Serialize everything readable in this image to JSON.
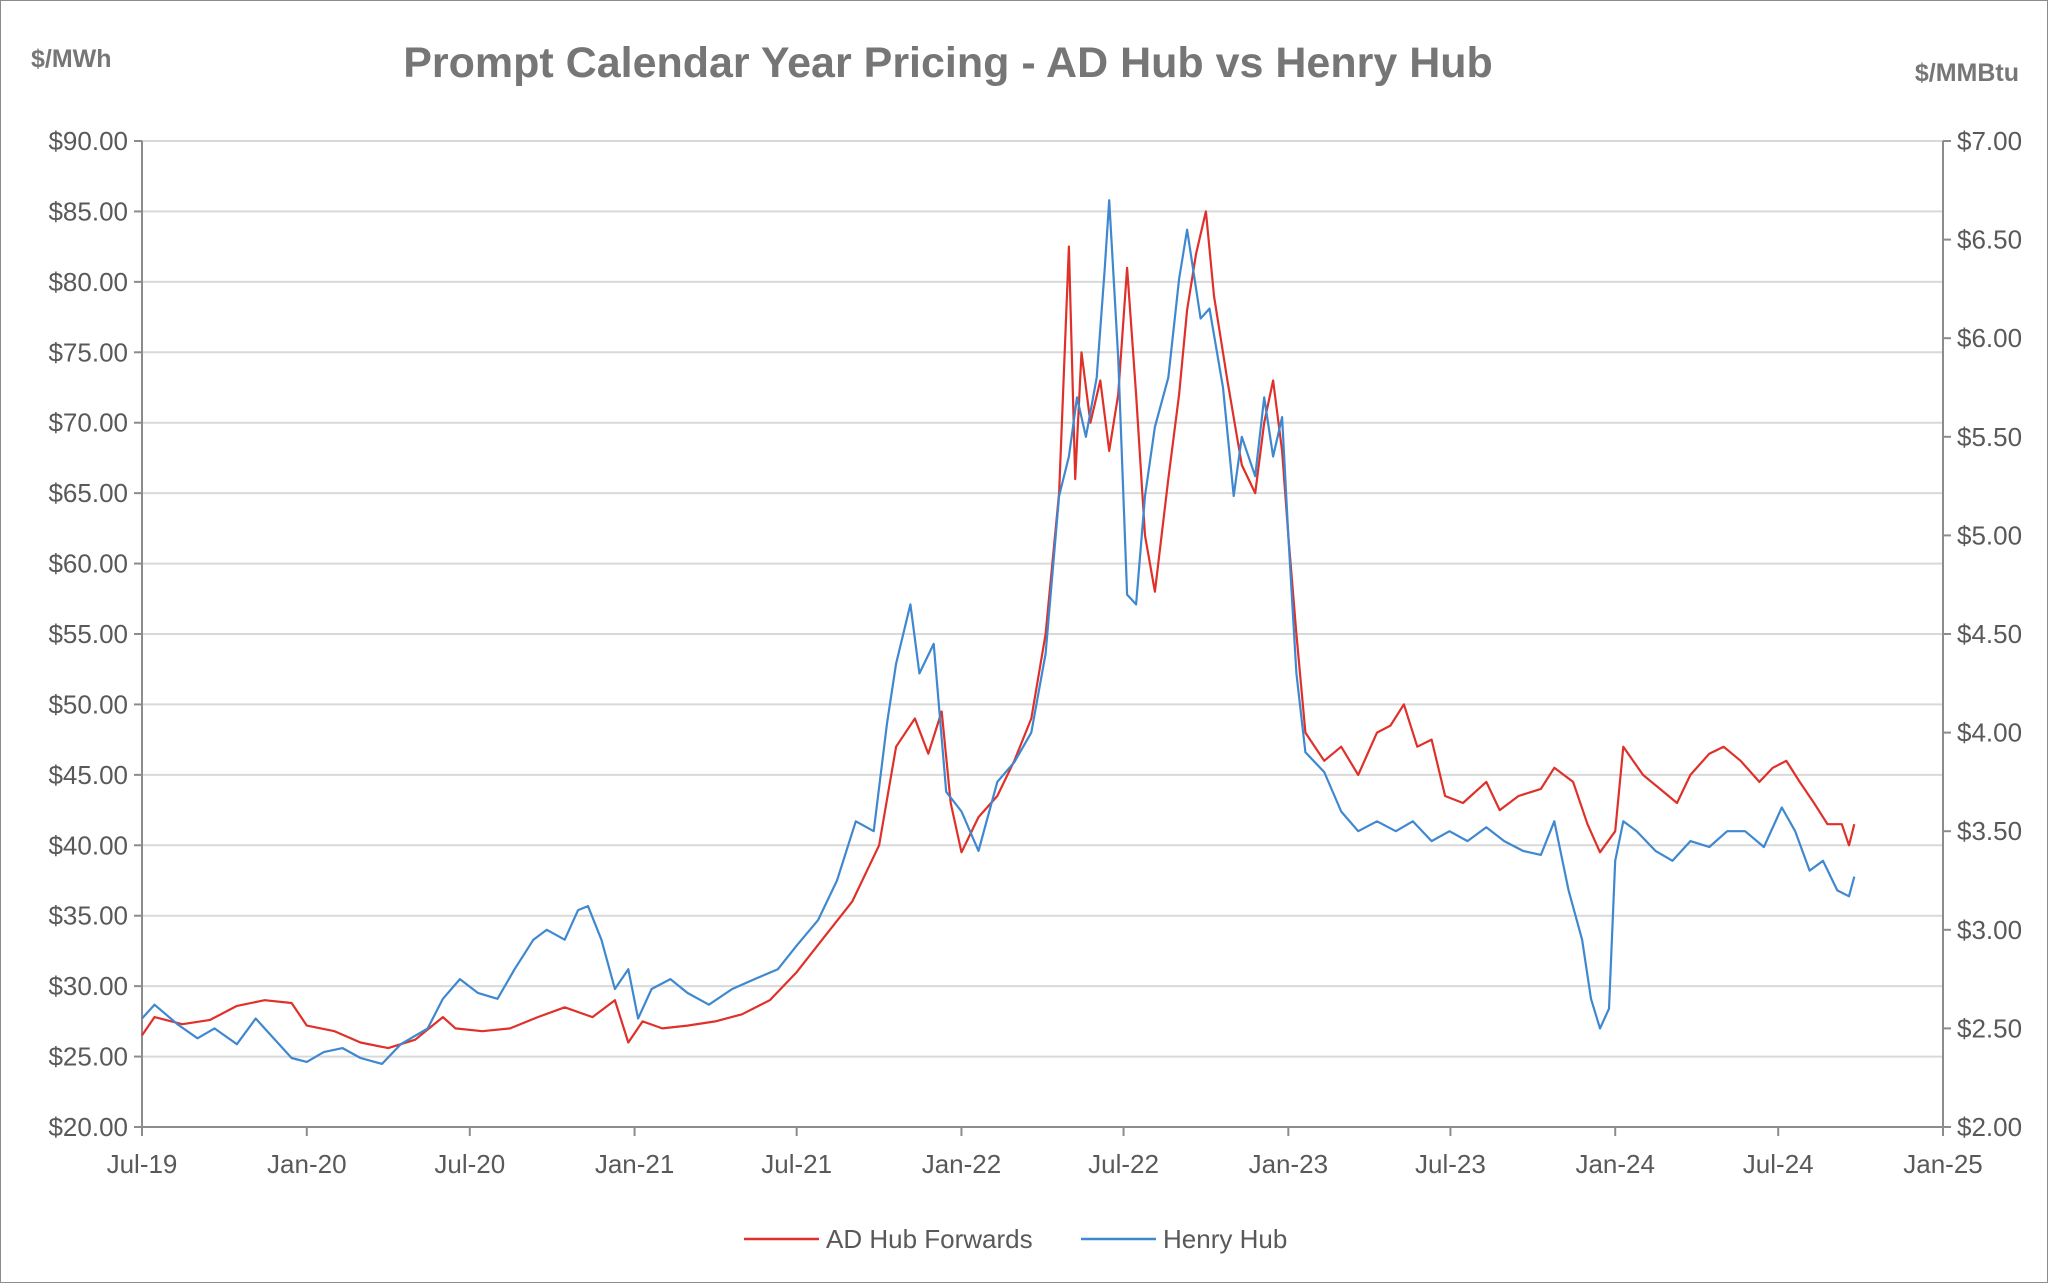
{
  "chart_data": {
    "type": "line",
    "title": "Prompt Calendar Year Pricing - AD Hub vs Henry Hub",
    "ylabel_left": "$/MWh",
    "ylabel_right": "$/MMBtu",
    "xlabel": "",
    "xlim": [
      "2019-07-01",
      "2025-01-01"
    ],
    "ylim_left": [
      20,
      90
    ],
    "ylim_right": [
      2,
      7
    ],
    "x_ticks": [
      {
        "date": "2019-07-01",
        "label": "Jul-19"
      },
      {
        "date": "2020-01-01",
        "label": "Jan-20"
      },
      {
        "date": "2020-07-01",
        "label": "Jul-20"
      },
      {
        "date": "2021-01-01",
        "label": "Jan-21"
      },
      {
        "date": "2021-07-01",
        "label": "Jul-21"
      },
      {
        "date": "2022-01-01",
        "label": "Jan-22"
      },
      {
        "date": "2022-07-01",
        "label": "Jul-22"
      },
      {
        "date": "2023-01-01",
        "label": "Jan-23"
      },
      {
        "date": "2023-07-01",
        "label": "Jul-23"
      },
      {
        "date": "2024-01-01",
        "label": "Jan-24"
      },
      {
        "date": "2024-07-01",
        "label": "Jul-24"
      },
      {
        "date": "2025-01-01",
        "label": "Jan-25"
      }
    ],
    "y_ticks_left": [
      {
        "value": 20,
        "label": "$20.00"
      },
      {
        "value": 25,
        "label": "$25.00"
      },
      {
        "value": 30,
        "label": "$30.00"
      },
      {
        "value": 35,
        "label": "$35.00"
      },
      {
        "value": 40,
        "label": "$40.00"
      },
      {
        "value": 45,
        "label": "$45.00"
      },
      {
        "value": 50,
        "label": "$50.00"
      },
      {
        "value": 55,
        "label": "$55.00"
      },
      {
        "value": 60,
        "label": "$60.00"
      },
      {
        "value": 65,
        "label": "$65.00"
      },
      {
        "value": 70,
        "label": "$70.00"
      },
      {
        "value": 75,
        "label": "$75.00"
      },
      {
        "value": 80,
        "label": "$80.00"
      },
      {
        "value": 85,
        "label": "$85.00"
      },
      {
        "value": 90,
        "label": "$90.00"
      }
    ],
    "y_ticks_right": [
      {
        "value": 2,
        "label": "$2.00"
      },
      {
        "value": 2.5,
        "label": "$2.50"
      },
      {
        "value": 3,
        "label": "$3.00"
      },
      {
        "value": 3.5,
        "label": "$3.50"
      },
      {
        "value": 4,
        "label": "$4.00"
      },
      {
        "value": 4.5,
        "label": "$4.50"
      },
      {
        "value": 5,
        "label": "$5.00"
      },
      {
        "value": 5.5,
        "label": "$5.50"
      },
      {
        "value": 6,
        "label": "$6.00"
      },
      {
        "value": 6.5,
        "label": "$6.50"
      },
      {
        "value": 7,
        "label": "$7.00"
      }
    ],
    "grid": true,
    "legend_position": "bottom",
    "series": [
      {
        "name": "AD Hub Forwards",
        "axis": "left",
        "color": "#e0302a",
        "points": [
          [
            "2019-07-01",
            26.5
          ],
          [
            "2019-07-15",
            27.8
          ],
          [
            "2019-08-15",
            27.3
          ],
          [
            "2019-09-15",
            27.6
          ],
          [
            "2019-10-15",
            28.6
          ],
          [
            "2019-11-15",
            29.0
          ],
          [
            "2019-12-15",
            28.8
          ],
          [
            "2020-01-01",
            27.2
          ],
          [
            "2020-02-01",
            26.8
          ],
          [
            "2020-03-01",
            26.0
          ],
          [
            "2020-04-01",
            25.6
          ],
          [
            "2020-05-01",
            26.2
          ],
          [
            "2020-06-01",
            27.8
          ],
          [
            "2020-06-15",
            27.0
          ],
          [
            "2020-07-15",
            26.8
          ],
          [
            "2020-08-15",
            27.0
          ],
          [
            "2020-09-15",
            27.8
          ],
          [
            "2020-10-15",
            28.5
          ],
          [
            "2020-11-15",
            27.8
          ],
          [
            "2020-12-10",
            29.0
          ],
          [
            "2020-12-25",
            26.0
          ],
          [
            "2021-01-10",
            27.5
          ],
          [
            "2021-02-01",
            27.0
          ],
          [
            "2021-03-01",
            27.2
          ],
          [
            "2021-04-01",
            27.5
          ],
          [
            "2021-05-01",
            28.0
          ],
          [
            "2021-06-01",
            29.0
          ],
          [
            "2021-07-01",
            31.0
          ],
          [
            "2021-08-01",
            33.5
          ],
          [
            "2021-09-01",
            36.0
          ],
          [
            "2021-10-01",
            40.0
          ],
          [
            "2021-10-20",
            47.0
          ],
          [
            "2021-11-10",
            49.0
          ],
          [
            "2021-11-25",
            46.5
          ],
          [
            "2021-12-10",
            49.5
          ],
          [
            "2021-12-20",
            43.0
          ],
          [
            "2022-01-01",
            39.5
          ],
          [
            "2022-01-20",
            42.0
          ],
          [
            "2022-02-10",
            43.5
          ],
          [
            "2022-03-01",
            46.0
          ],
          [
            "2022-03-20",
            49.0
          ],
          [
            "2022-04-05",
            55.0
          ],
          [
            "2022-04-20",
            65.0
          ],
          [
            "2022-05-01",
            82.5
          ],
          [
            "2022-05-08",
            66.0
          ],
          [
            "2022-05-15",
            75.0
          ],
          [
            "2022-05-25",
            70.0
          ],
          [
            "2022-06-05",
            73.0
          ],
          [
            "2022-06-15",
            68.0
          ],
          [
            "2022-06-25",
            72.0
          ],
          [
            "2022-07-05",
            81.0
          ],
          [
            "2022-07-15",
            72.0
          ],
          [
            "2022-07-25",
            62.0
          ],
          [
            "2022-08-05",
            58.0
          ],
          [
            "2022-08-20",
            66.0
          ],
          [
            "2022-09-01",
            72.0
          ],
          [
            "2022-09-10",
            78.0
          ],
          [
            "2022-09-20",
            82.0
          ],
          [
            "2022-10-01",
            85.0
          ],
          [
            "2022-10-10",
            79.0
          ],
          [
            "2022-10-25",
            73.0
          ],
          [
            "2022-11-10",
            67.0
          ],
          [
            "2022-11-25",
            65.0
          ],
          [
            "2022-12-05",
            70.0
          ],
          [
            "2022-12-15",
            73.0
          ],
          [
            "2022-12-25",
            68.0
          ],
          [
            "2023-01-01",
            62.0
          ],
          [
            "2023-01-10",
            55.0
          ],
          [
            "2023-01-20",
            48.0
          ],
          [
            "2023-02-10",
            46.0
          ],
          [
            "2023-03-01",
            47.0
          ],
          [
            "2023-03-20",
            45.0
          ],
          [
            "2023-04-10",
            48.0
          ],
          [
            "2023-04-25",
            48.5
          ],
          [
            "2023-05-10",
            50.0
          ],
          [
            "2023-05-25",
            47.0
          ],
          [
            "2023-06-10",
            47.5
          ],
          [
            "2023-06-25",
            43.5
          ],
          [
            "2023-07-15",
            43.0
          ],
          [
            "2023-08-10",
            44.5
          ],
          [
            "2023-08-25",
            42.5
          ],
          [
            "2023-09-15",
            43.5
          ],
          [
            "2023-10-10",
            44.0
          ],
          [
            "2023-10-25",
            45.5
          ],
          [
            "2023-11-15",
            44.5
          ],
          [
            "2023-12-01",
            41.5
          ],
          [
            "2023-12-15",
            39.5
          ],
          [
            "2024-01-01",
            41.0
          ],
          [
            "2024-01-10",
            47.0
          ],
          [
            "2024-02-01",
            45.0
          ],
          [
            "2024-02-20",
            44.0
          ],
          [
            "2024-03-10",
            43.0
          ],
          [
            "2024-03-25",
            45.0
          ],
          [
            "2024-04-15",
            46.5
          ],
          [
            "2024-05-01",
            47.0
          ],
          [
            "2024-05-20",
            46.0
          ],
          [
            "2024-06-10",
            44.5
          ],
          [
            "2024-06-25",
            45.5
          ],
          [
            "2024-07-10",
            46.0
          ],
          [
            "2024-07-25",
            44.5
          ],
          [
            "2024-08-10",
            43.0
          ],
          [
            "2024-08-25",
            41.5
          ],
          [
            "2024-09-10",
            41.5
          ],
          [
            "2024-09-18",
            40.0
          ],
          [
            "2024-09-24",
            41.5
          ]
        ]
      },
      {
        "name": "Henry Hub",
        "axis": "right",
        "color": "#3f88d0",
        "points": [
          [
            "2019-07-01",
            2.55
          ],
          [
            "2019-07-15",
            2.62
          ],
          [
            "2019-08-10",
            2.52
          ],
          [
            "2019-09-01",
            2.45
          ],
          [
            "2019-09-20",
            2.5
          ],
          [
            "2019-10-15",
            2.42
          ],
          [
            "2019-11-05",
            2.55
          ],
          [
            "2019-11-25",
            2.45
          ],
          [
            "2019-12-15",
            2.35
          ],
          [
            "2020-01-01",
            2.33
          ],
          [
            "2020-01-20",
            2.38
          ],
          [
            "2020-02-10",
            2.4
          ],
          [
            "2020-03-01",
            2.35
          ],
          [
            "2020-03-25",
            2.32
          ],
          [
            "2020-04-15",
            2.42
          ],
          [
            "2020-05-15",
            2.5
          ],
          [
            "2020-06-01",
            2.65
          ],
          [
            "2020-06-20",
            2.75
          ],
          [
            "2020-07-10",
            2.68
          ],
          [
            "2020-08-01",
            2.65
          ],
          [
            "2020-08-20",
            2.8
          ],
          [
            "2020-09-10",
            2.95
          ],
          [
            "2020-09-25",
            3.0
          ],
          [
            "2020-10-15",
            2.95
          ],
          [
            "2020-10-30",
            3.1
          ],
          [
            "2020-11-10",
            3.12
          ],
          [
            "2020-11-25",
            2.95
          ],
          [
            "2020-12-10",
            2.7
          ],
          [
            "2020-12-25",
            2.8
          ],
          [
            "2021-01-05",
            2.55
          ],
          [
            "2021-01-20",
            2.7
          ],
          [
            "2021-02-10",
            2.75
          ],
          [
            "2021-03-01",
            2.68
          ],
          [
            "2021-03-25",
            2.62
          ],
          [
            "2021-04-20",
            2.7
          ],
          [
            "2021-05-15",
            2.75
          ],
          [
            "2021-06-10",
            2.8
          ],
          [
            "2021-07-01",
            2.92
          ],
          [
            "2021-07-25",
            3.05
          ],
          [
            "2021-08-15",
            3.25
          ],
          [
            "2021-09-05",
            3.55
          ],
          [
            "2021-09-25",
            3.5
          ],
          [
            "2021-10-10",
            4.05
          ],
          [
            "2021-10-20",
            4.35
          ],
          [
            "2021-11-05",
            4.65
          ],
          [
            "2021-11-15",
            4.3
          ],
          [
            "2021-12-01",
            4.45
          ],
          [
            "2021-12-15",
            3.7
          ],
          [
            "2022-01-01",
            3.6
          ],
          [
            "2022-01-20",
            3.4
          ],
          [
            "2022-02-10",
            3.75
          ],
          [
            "2022-03-01",
            3.85
          ],
          [
            "2022-03-20",
            4.0
          ],
          [
            "2022-04-05",
            4.4
          ],
          [
            "2022-04-20",
            5.2
          ],
          [
            "2022-05-01",
            5.4
          ],
          [
            "2022-05-10",
            5.7
          ],
          [
            "2022-05-20",
            5.5
          ],
          [
            "2022-06-01",
            5.8
          ],
          [
            "2022-06-10",
            6.35
          ],
          [
            "2022-06-15",
            6.7
          ],
          [
            "2022-06-25",
            5.9
          ],
          [
            "2022-07-05",
            4.7
          ],
          [
            "2022-07-15",
            4.65
          ],
          [
            "2022-07-25",
            5.2
          ],
          [
            "2022-08-05",
            5.55
          ],
          [
            "2022-08-20",
            5.8
          ],
          [
            "2022-09-01",
            6.3
          ],
          [
            "2022-09-10",
            6.55
          ],
          [
            "2022-09-25",
            6.1
          ],
          [
            "2022-10-05",
            6.15
          ],
          [
            "2022-10-20",
            5.75
          ],
          [
            "2022-11-01",
            5.2
          ],
          [
            "2022-11-10",
            5.5
          ],
          [
            "2022-11-25",
            5.3
          ],
          [
            "2022-12-05",
            5.7
          ],
          [
            "2022-12-15",
            5.4
          ],
          [
            "2022-12-25",
            5.6
          ],
          [
            "2023-01-01",
            5.0
          ],
          [
            "2023-01-10",
            4.3
          ],
          [
            "2023-01-20",
            3.9
          ],
          [
            "2023-02-10",
            3.8
          ],
          [
            "2023-03-01",
            3.6
          ],
          [
            "2023-03-20",
            3.5
          ],
          [
            "2023-04-10",
            3.55
          ],
          [
            "2023-05-01",
            3.5
          ],
          [
            "2023-05-20",
            3.55
          ],
          [
            "2023-06-10",
            3.45
          ],
          [
            "2023-06-30",
            3.5
          ],
          [
            "2023-07-20",
            3.45
          ],
          [
            "2023-08-10",
            3.52
          ],
          [
            "2023-08-30",
            3.45
          ],
          [
            "2023-09-20",
            3.4
          ],
          [
            "2023-10-10",
            3.38
          ],
          [
            "2023-10-25",
            3.55
          ],
          [
            "2023-11-10",
            3.2
          ],
          [
            "2023-11-25",
            2.95
          ],
          [
            "2023-12-05",
            2.65
          ],
          [
            "2023-12-15",
            2.5
          ],
          [
            "2023-12-25",
            2.6
          ],
          [
            "2024-01-01",
            3.35
          ],
          [
            "2024-01-10",
            3.55
          ],
          [
            "2024-01-25",
            3.5
          ],
          [
            "2024-02-15",
            3.4
          ],
          [
            "2024-03-05",
            3.35
          ],
          [
            "2024-03-25",
            3.45
          ],
          [
            "2024-04-15",
            3.42
          ],
          [
            "2024-05-05",
            3.5
          ],
          [
            "2024-05-25",
            3.5
          ],
          [
            "2024-06-15",
            3.42
          ],
          [
            "2024-07-05",
            3.62
          ],
          [
            "2024-07-20",
            3.5
          ],
          [
            "2024-08-05",
            3.3
          ],
          [
            "2024-08-20",
            3.35
          ],
          [
            "2024-09-05",
            3.2
          ],
          [
            "2024-09-18",
            3.17
          ],
          [
            "2024-09-24",
            3.27
          ]
        ]
      }
    ]
  }
}
